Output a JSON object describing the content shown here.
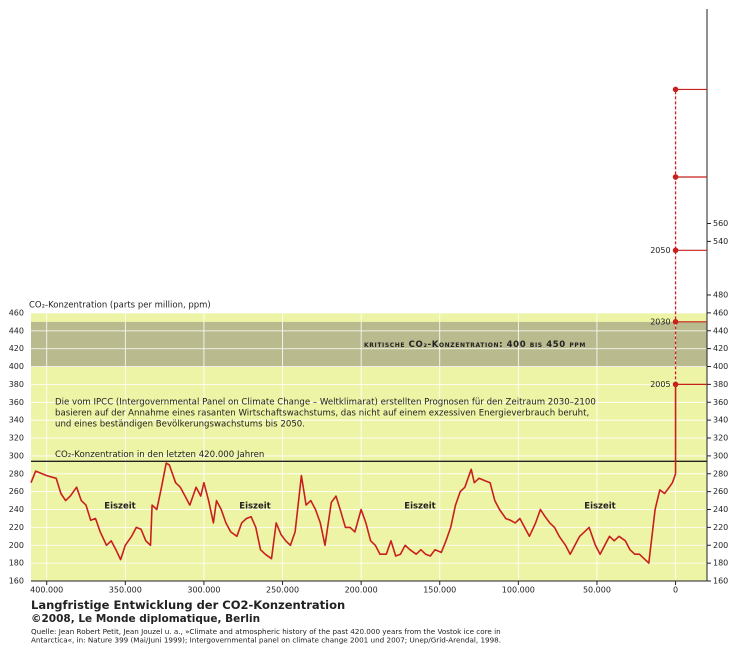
{
  "chart_data": {
    "type": "line",
    "title": "Langfristige Entwicklung der CO2-Konzentration",
    "subtitle": "©2008, Le Monde diplomatique, Berlin",
    "source": [
      "Quelle: Jean Robert Petit, Jean Jouzel u. a., »Climate and atmospheric history of the past 420.000 years from the Vostok ice core in",
      "Antarctica«, in: Nature 399 (Mai/Juni 1999); Intergovernmental panel on climate change 2001 und 2007; Unep/Grid-Arendal, 1998."
    ],
    "y_label": "CO₂-Konzentration (parts per million, ppm)",
    "color": "#c8201e",
    "background": "#eef4a6",
    "grid": true,
    "x": [
      410000,
      407000,
      400000,
      394000,
      391000,
      388000,
      385000,
      381000,
      378000,
      375000,
      372000,
      369000,
      366000,
      362000,
      359000,
      356000,
      353000,
      350000,
      346000,
      343000,
      340000,
      337000,
      334000,
      333000,
      330000,
      327000,
      324000,
      322000,
      318000,
      315000,
      312000,
      309000,
      305000,
      302000,
      300000,
      297000,
      294000,
      292000,
      289000,
      286000,
      283000,
      279000,
      276000,
      273000,
      270000,
      267000,
      264000,
      261000,
      257000,
      254000,
      251000,
      248000,
      245000,
      242000,
      238000,
      235000,
      232000,
      229000,
      226000,
      223000,
      219000,
      216000,
      213000,
      210000,
      207000,
      204000,
      200000,
      197000,
      194000,
      191000,
      188000,
      184000,
      181000,
      178000,
      175000,
      172000,
      169000,
      165000,
      162000,
      159000,
      156000,
      153000,
      149000,
      146000,
      143000,
      140000,
      137000,
      134000,
      130000,
      128000,
      125000,
      121000,
      118000,
      115000,
      112000,
      108000,
      105000,
      102000,
      99000,
      96000,
      93000,
      89000,
      86000,
      83000,
      80000,
      77000,
      74000,
      70000,
      67000,
      64000,
      61000,
      58000,
      55000,
      51000,
      48000,
      45000,
      42000,
      39000,
      36000,
      32000,
      29000,
      26000,
      23000,
      20000,
      17000,
      13000,
      10000,
      7000,
      4000,
      2000,
      0
    ],
    "values": [
      270,
      283,
      278,
      275,
      258,
      250,
      255,
      265,
      250,
      245,
      228,
      230,
      215,
      200,
      205,
      195,
      184,
      200,
      210,
      220,
      218,
      205,
      200,
      245,
      240,
      265,
      292,
      290,
      270,
      265,
      255,
      245,
      265,
      255,
      270,
      250,
      225,
      250,
      240,
      225,
      215,
      210,
      225,
      230,
      232,
      220,
      195,
      190,
      185,
      225,
      212,
      205,
      200,
      215,
      278,
      245,
      250,
      240,
      225,
      200,
      248,
      255,
      238,
      220,
      220,
      215,
      240,
      225,
      205,
      200,
      190,
      190,
      205,
      188,
      190,
      200,
      195,
      190,
      195,
      190,
      188,
      195,
      192,
      205,
      220,
      245,
      260,
      265,
      285,
      270,
      275,
      272,
      270,
      250,
      240,
      230,
      228,
      225,
      230,
      220,
      210,
      225,
      240,
      232,
      225,
      220,
      210,
      200,
      190,
      200,
      210,
      215,
      220,
      200,
      190,
      200,
      210,
      205,
      210,
      205,
      195,
      190,
      190,
      185,
      180,
      240,
      262,
      258,
      265,
      270,
      280
    ],
    "xlim": [
      410000,
      -20000
    ],
    "xticks": [
      {
        "value": 400000,
        "label": "400.000"
      },
      {
        "value": 350000,
        "label": "350.000"
      },
      {
        "value": 300000,
        "label": "300.000"
      },
      {
        "value": 250000,
        "label": "250.000"
      },
      {
        "value": 200000,
        "label": "200.000"
      },
      {
        "value": 150000,
        "label": "150.000"
      },
      {
        "value": 100000,
        "label": "100.000"
      },
      {
        "value": 50000,
        "label": "50.000"
      },
      0
    ],
    "ylim": [
      160,
      460
    ],
    "yticks": [
      160,
      180,
      200,
      220,
      240,
      260,
      280,
      300,
      320,
      340,
      360,
      380,
      400,
      420,
      440,
      460
    ],
    "y2lim": [
      160,
      800
    ],
    "y2ticks": [
      160,
      180,
      200,
      220,
      240,
      260,
      280,
      300,
      320,
      340,
      360,
      380,
      400,
      420,
      440,
      460,
      480,
      540,
      560
    ],
    "band": {
      "label": "kritische CO₂-Konzentration: 400 bis 450 ppm",
      "range": [
        400,
        450
      ],
      "color": "#b9bb8e"
    },
    "reference_line": {
      "label": "CO₂-Konzentration in den letzten 420.000 Jahren",
      "value": 294
    },
    "note": [
      "Die vom IPCC (Intergovernmental Panel on Climate Change – Weltklimarat) erstellten Prognosen für den Zeitraum 2030–2100",
      "basieren  auf der Annahme eines rasanten Wirtschaftswachstums, das nicht auf einem exzessiven Energieverbrauch beruht,",
      "und eines beständigen Bevölkerungswachstums bis 2050."
    ],
    "annotations": [
      "Eiszeit",
      "Eiszeit",
      "Eiszeit",
      "Eiszeit"
    ],
    "projections": {
      "labels": [
        "2005",
        "2030",
        "2050",
        null,
        null
      ],
      "values": [
        380,
        450,
        530,
        612,
        710
      ]
    }
  }
}
